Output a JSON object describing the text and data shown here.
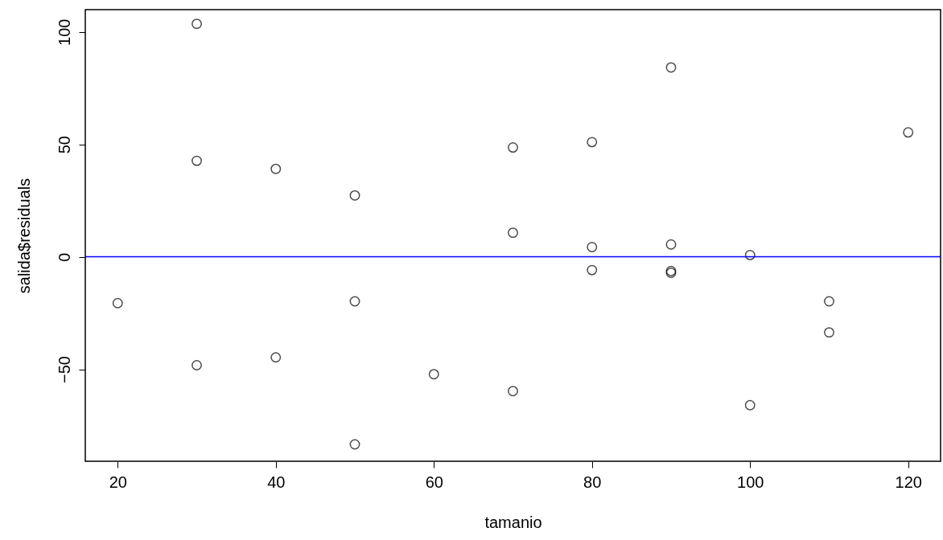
{
  "chart_data": {
    "type": "scatter",
    "xlabel": "tamanio",
    "ylabel": "salida$residuals",
    "x": [
      20,
      30,
      30,
      30,
      40,
      40,
      50,
      50,
      50,
      60,
      70,
      70,
      70,
      80,
      80,
      80,
      90,
      90,
      90,
      90,
      100,
      100,
      110,
      110,
      120
    ],
    "series": [
      {
        "color": "#000000",
        "values": [
          -20.6,
          103.6,
          42.7,
          -48.2,
          39.1,
          -44.7,
          27.3,
          -19.8,
          -83.4,
          -52.2,
          48.6,
          10.7,
          -59.7,
          51.0,
          4.3,
          -5.9,
          84.2,
          5.5,
          -6.3,
          -7.1,
          0.8,
          -66.0,
          -19.8,
          -33.6,
          55.3
        ]
      }
    ],
    "xlim": [
      15.9,
      124.1
    ],
    "ylim": [
      -90.9,
      109.9
    ],
    "xticks": [
      20,
      40,
      60,
      80,
      100,
      120
    ],
    "yticks": [
      -50,
      0,
      50,
      100
    ],
    "ref_lines": [
      {
        "axis": "y",
        "value": 0,
        "color": "#0000ff"
      }
    ],
    "marker": "circle",
    "grid": false
  }
}
